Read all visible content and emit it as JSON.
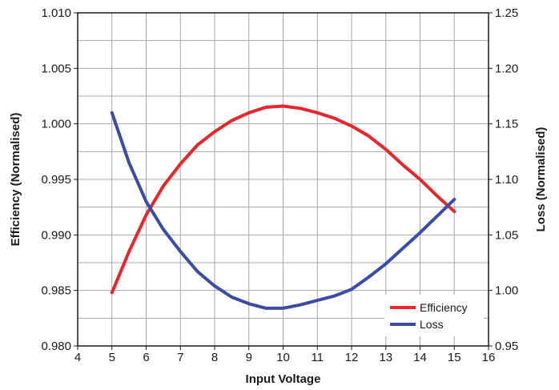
{
  "chart_data": {
    "type": "line",
    "title": "",
    "xlabel": "Input Voltage",
    "ylabel_left": "Efficiency (Normalised)",
    "ylabel_right": "Loss  (Normalised)",
    "xlim": [
      4,
      16
    ],
    "ylim_left": [
      0.98,
      1.01
    ],
    "ylim_right": [
      0.95,
      1.25
    ],
    "x_ticks": [
      "4",
      "5",
      "6",
      "7",
      "8",
      "9",
      "10",
      "11",
      "12",
      "13",
      "14",
      "15",
      "16"
    ],
    "y_left_ticks": [
      "0.980",
      "0.985",
      "0.990",
      "0.995",
      "1.000",
      "1.005",
      "1.010"
    ],
    "y_right_ticks": [
      "0.95",
      "1.00",
      "1.05",
      "1.10",
      "1.15",
      "1.20",
      "1.25"
    ],
    "grid": true,
    "legend_position": "bottom-right",
    "series": [
      {
        "name": "Efficiency",
        "axis": "left",
        "color": "#e8262c",
        "x": [
          5,
          5.5,
          6,
          6.5,
          7,
          7.5,
          8,
          8.5,
          9,
          9.5,
          10,
          10.5,
          11,
          11.5,
          12,
          12.5,
          13,
          13.5,
          14,
          14.5,
          15
        ],
        "y": [
          0.9848,
          0.9885,
          0.9918,
          0.9944,
          0.9964,
          0.9981,
          0.9993,
          1.0003,
          1.001,
          1.0015,
          1.0016,
          1.0014,
          1.001,
          1.0005,
          0.9998,
          0.9989,
          0.9977,
          0.9963,
          0.995,
          0.9935,
          0.9921
        ]
      },
      {
        "name": "Loss",
        "axis": "right",
        "color": "#3a4ca4",
        "x": [
          5,
          5.5,
          6,
          6.5,
          7,
          7.5,
          8,
          8.5,
          9,
          9.5,
          10,
          10.5,
          11,
          11.5,
          12,
          12.5,
          13,
          13.5,
          14,
          14.5,
          15
        ],
        "y": [
          1.16,
          1.115,
          1.08,
          1.055,
          1.035,
          1.017,
          1.004,
          0.994,
          0.988,
          0.984,
          0.984,
          0.987,
          0.991,
          0.995,
          1.001,
          1.012,
          1.024,
          1.038,
          1.052,
          1.067,
          1.082
        ]
      }
    ]
  }
}
